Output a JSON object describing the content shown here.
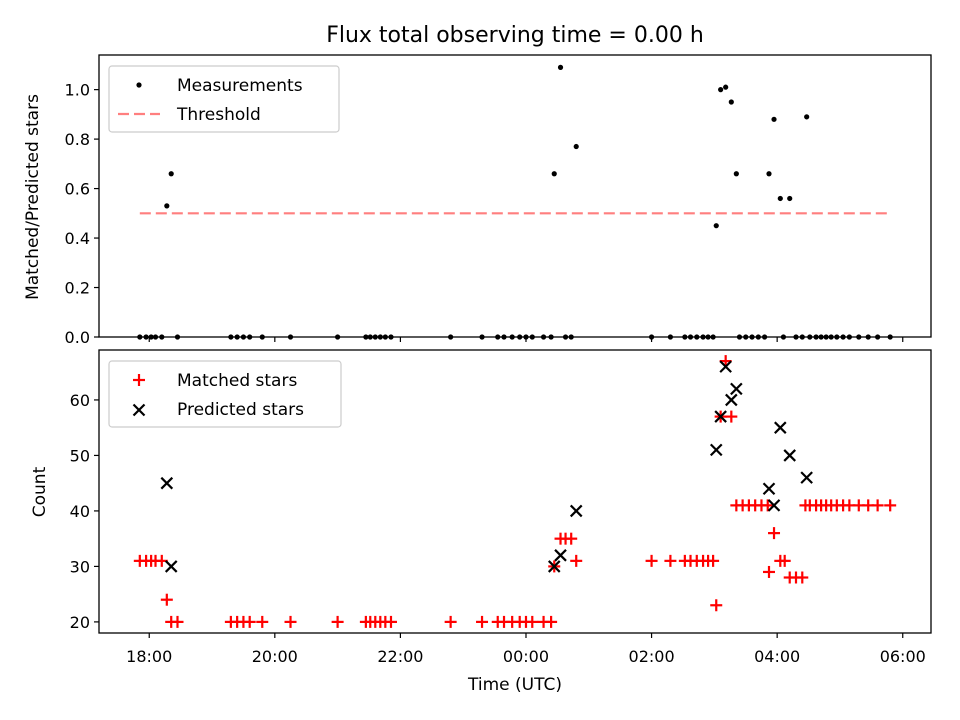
{
  "title": "Flux total observing time = 0.00 h",
  "colors": {
    "measurement": "#000000",
    "threshold": "#ff7f7f",
    "matched": "#ff0000",
    "predicted": "#000000"
  },
  "chart_data": [
    {
      "type": "scatter",
      "panel": "top",
      "ylabel": "Matched/Predicted stars",
      "ylim": [
        0.0,
        1.14
      ],
      "yticks": [
        "0.0",
        "0.2",
        "0.4",
        "0.6",
        "0.8",
        "1.0"
      ],
      "xlim_hours": [
        17.2,
        30.45
      ],
      "legend": {
        "position": "upper-left",
        "measurements_label": "Measurements",
        "threshold_label": "Threshold"
      },
      "threshold": {
        "value": 0.5,
        "x_start_hours": 17.85,
        "x_end_hours": 29.8
      },
      "series": [
        {
          "name": "Measurements",
          "marker": "dot",
          "points": [
            [
              17.85,
              0
            ],
            [
              17.95,
              0
            ],
            [
              18.03,
              0
            ],
            [
              18.1,
              0
            ],
            [
              18.2,
              0
            ],
            [
              18.28,
              0.53
            ],
            [
              18.35,
              0.66
            ],
            [
              18.45,
              0
            ],
            [
              19.3,
              0
            ],
            [
              19.4,
              0
            ],
            [
              19.5,
              0
            ],
            [
              19.6,
              0
            ],
            [
              19.8,
              0
            ],
            [
              20.25,
              0
            ],
            [
              21.0,
              0
            ],
            [
              21.45,
              0
            ],
            [
              21.52,
              0
            ],
            [
              21.6,
              0
            ],
            [
              21.68,
              0
            ],
            [
              21.76,
              0
            ],
            [
              21.85,
              0
            ],
            [
              22.8,
              0
            ],
            [
              23.3,
              0
            ],
            [
              23.55,
              0
            ],
            [
              23.65,
              0
            ],
            [
              23.78,
              0
            ],
            [
              23.9,
              0
            ],
            [
              24.0,
              0
            ],
            [
              24.1,
              0
            ],
            [
              24.28,
              0
            ],
            [
              24.4,
              0
            ],
            [
              24.45,
              0.66
            ],
            [
              24.55,
              1.09
            ],
            [
              24.63,
              0
            ],
            [
              24.72,
              0
            ],
            [
              24.8,
              0.77
            ],
            [
              26.0,
              0
            ],
            [
              26.3,
              0
            ],
            [
              26.53,
              0
            ],
            [
              26.62,
              0
            ],
            [
              26.72,
              0
            ],
            [
              26.82,
              0
            ],
            [
              26.9,
              0
            ],
            [
              26.98,
              0
            ],
            [
              27.03,
              0.45
            ],
            [
              27.1,
              1.0
            ],
            [
              27.18,
              1.01
            ],
            [
              27.27,
              0.95
            ],
            [
              27.35,
              0.66
            ],
            [
              27.4,
              0
            ],
            [
              27.5,
              0
            ],
            [
              27.6,
              0
            ],
            [
              27.7,
              0
            ],
            [
              27.8,
              0
            ],
            [
              27.87,
              0.66
            ],
            [
              27.95,
              0.88
            ],
            [
              28.05,
              0.56
            ],
            [
              28.1,
              0
            ],
            [
              28.2,
              0.56
            ],
            [
              28.3,
              0
            ],
            [
              28.4,
              0
            ],
            [
              28.47,
              0.89
            ],
            [
              28.52,
              0
            ],
            [
              28.62,
              0
            ],
            [
              28.7,
              0
            ],
            [
              28.78,
              0
            ],
            [
              28.86,
              0
            ],
            [
              28.95,
              0
            ],
            [
              29.05,
              0
            ],
            [
              29.15,
              0
            ],
            [
              29.3,
              0
            ],
            [
              29.45,
              0
            ],
            [
              29.6,
              0
            ],
            [
              29.8,
              0
            ]
          ]
        }
      ]
    },
    {
      "type": "scatter",
      "panel": "bottom",
      "xlabel": "Time (UTC)",
      "ylabel": "Count",
      "ylim": [
        18,
        69
      ],
      "yticks": [
        "20",
        "30",
        "40",
        "50",
        "60"
      ],
      "xlim_hours": [
        17.2,
        30.45
      ],
      "xticks": [
        {
          "hours": 18,
          "label": "18:00"
        },
        {
          "hours": 20,
          "label": "20:00"
        },
        {
          "hours": 22,
          "label": "22:00"
        },
        {
          "hours": 24,
          "label": "00:00"
        },
        {
          "hours": 26,
          "label": "02:00"
        },
        {
          "hours": 28,
          "label": "04:00"
        },
        {
          "hours": 30,
          "label": "06:00"
        }
      ],
      "legend": {
        "position": "upper-left",
        "matched_label": "Matched stars",
        "predicted_label": "Predicted stars"
      },
      "series": [
        {
          "name": "Matched stars",
          "marker": "plus",
          "points": [
            [
              17.85,
              31
            ],
            [
              17.95,
              31
            ],
            [
              18.03,
              31
            ],
            [
              18.1,
              31
            ],
            [
              18.2,
              31
            ],
            [
              18.28,
              24
            ],
            [
              18.35,
              20
            ],
            [
              18.45,
              20
            ],
            [
              19.3,
              20
            ],
            [
              19.4,
              20
            ],
            [
              19.5,
              20
            ],
            [
              19.6,
              20
            ],
            [
              19.8,
              20
            ],
            [
              20.25,
              20
            ],
            [
              21.0,
              20
            ],
            [
              21.45,
              20
            ],
            [
              21.52,
              20
            ],
            [
              21.6,
              20
            ],
            [
              21.68,
              20
            ],
            [
              21.76,
              20
            ],
            [
              21.85,
              20
            ],
            [
              22.8,
              20
            ],
            [
              23.3,
              20
            ],
            [
              23.55,
              20
            ],
            [
              23.65,
              20
            ],
            [
              23.78,
              20
            ],
            [
              23.9,
              20
            ],
            [
              24.0,
              20
            ],
            [
              24.1,
              20
            ],
            [
              24.28,
              20
            ],
            [
              24.4,
              20
            ],
            [
              24.45,
              30
            ],
            [
              24.55,
              35
            ],
            [
              24.63,
              35
            ],
            [
              24.72,
              35
            ],
            [
              24.8,
              31
            ],
            [
              26.0,
              31
            ],
            [
              26.3,
              31
            ],
            [
              26.53,
              31
            ],
            [
              26.62,
              31
            ],
            [
              26.72,
              31
            ],
            [
              26.82,
              31
            ],
            [
              26.9,
              31
            ],
            [
              26.98,
              31
            ],
            [
              27.03,
              23
            ],
            [
              27.1,
              57
            ],
            [
              27.18,
              67
            ],
            [
              27.27,
              57
            ],
            [
              27.35,
              41
            ],
            [
              27.45,
              41
            ],
            [
              27.55,
              41
            ],
            [
              27.65,
              41
            ],
            [
              27.75,
              41
            ],
            [
              27.85,
              41
            ],
            [
              27.87,
              29
            ],
            [
              27.95,
              36
            ],
            [
              28.05,
              31
            ],
            [
              28.12,
              31
            ],
            [
              28.2,
              28
            ],
            [
              28.3,
              28
            ],
            [
              28.4,
              28
            ],
            [
              28.45,
              41
            ],
            [
              28.52,
              41
            ],
            [
              28.62,
              41
            ],
            [
              28.7,
              41
            ],
            [
              28.78,
              41
            ],
            [
              28.86,
              41
            ],
            [
              28.95,
              41
            ],
            [
              29.05,
              41
            ],
            [
              29.15,
              41
            ],
            [
              29.3,
              41
            ],
            [
              29.45,
              41
            ],
            [
              29.6,
              41
            ],
            [
              29.8,
              41
            ]
          ]
        },
        {
          "name": "Predicted stars",
          "marker": "x",
          "points": [
            [
              18.28,
              45
            ],
            [
              18.35,
              30
            ],
            [
              24.45,
              30
            ],
            [
              24.55,
              32
            ],
            [
              24.8,
              40
            ],
            [
              27.03,
              51
            ],
            [
              27.1,
              57
            ],
            [
              27.18,
              66
            ],
            [
              27.27,
              60
            ],
            [
              27.35,
              62
            ],
            [
              27.87,
              44
            ],
            [
              27.95,
              41
            ],
            [
              28.05,
              55
            ],
            [
              28.2,
              50
            ],
            [
              28.47,
              46
            ]
          ]
        }
      ]
    }
  ]
}
